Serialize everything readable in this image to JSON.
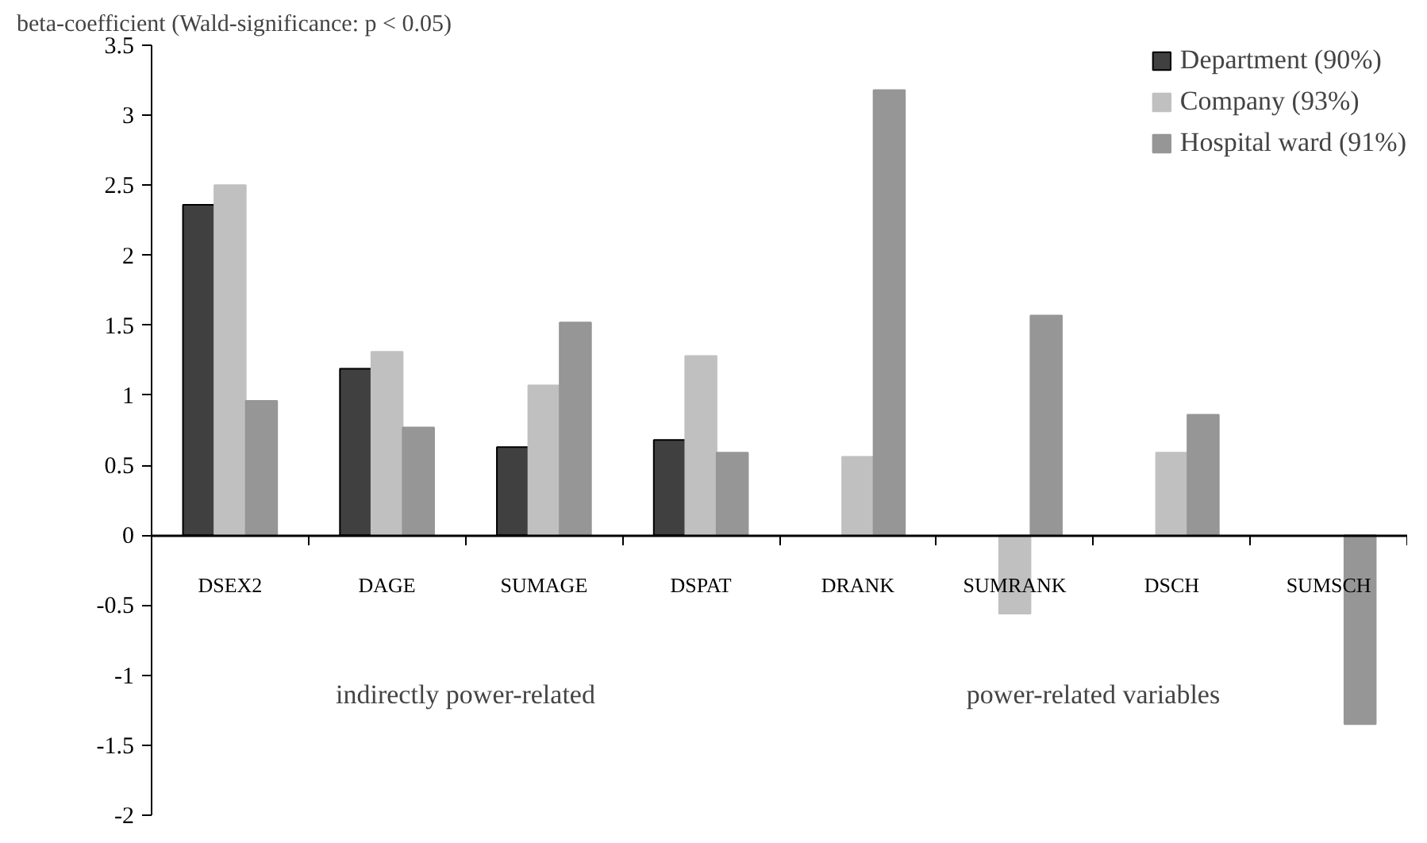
{
  "chart_data": {
    "type": "bar",
    "ylabel": "beta-coefficient (Wald-significance: p < 0.05)",
    "categories": [
      "DSEX2",
      "DAGE",
      "SUMAGE",
      "DSPAT",
      "DRANK",
      "SUMRANK",
      "DSCH",
      "SUMSCH"
    ],
    "series": [
      {
        "name": "Department (90%)",
        "color": "#404040",
        "values": [
          2.36,
          1.19,
          0.63,
          0.68,
          null,
          null,
          null,
          null
        ]
      },
      {
        "name": "Company (93%)",
        "color": "#c0c0c0",
        "values": [
          2.5,
          1.31,
          1.07,
          1.28,
          0.56,
          -0.56,
          0.59,
          null
        ]
      },
      {
        "name": "Hospital ward (91%)",
        "color": "#969696",
        "values": [
          0.96,
          0.77,
          1.52,
          0.59,
          3.18,
          1.57,
          0.86,
          -1.35
        ]
      }
    ],
    "ylim": [
      -2,
      3.5
    ],
    "yticks": [
      -2,
      -1.5,
      -1,
      -0.5,
      0,
      0.5,
      1,
      1.5,
      2,
      2.5,
      3,
      3.5
    ],
    "annotations": [
      "indirectly power-related",
      "power-related variables"
    ],
    "legend": "top right",
    "grid": false
  }
}
